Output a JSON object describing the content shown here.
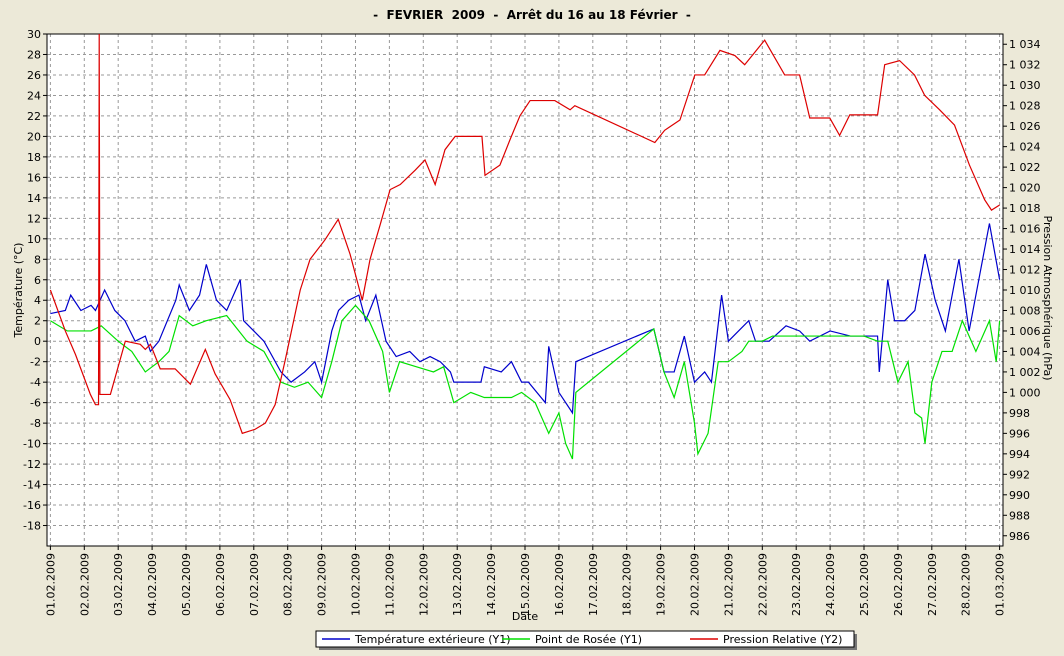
{
  "chart_data": {
    "type": "line",
    "title": "-  FEVRIER  2009  -  Arrêt du 16 au 18 Février  -",
    "x_label": "Date",
    "y_label": "Température (°C)",
    "y2_label": "Pression Atmosphérique (hPa)",
    "grid": true,
    "legend": "bottom",
    "xlim": [
      -0.1,
      28.1
    ],
    "xticks": [
      {
        "value": 0,
        "label": "01.02.2009"
      },
      {
        "value": 1,
        "label": "02.02.2009"
      },
      {
        "value": 2,
        "label": "03.02.2009"
      },
      {
        "value": 3,
        "label": "04.02.2009"
      },
      {
        "value": 4,
        "label": "05.02.2009"
      },
      {
        "value": 5,
        "label": "06.02.2009"
      },
      {
        "value": 6,
        "label": "07.02.2009"
      },
      {
        "value": 7,
        "label": "08.02.2009"
      },
      {
        "value": 8,
        "label": "09.02.2009"
      },
      {
        "value": 9,
        "label": "10.02.2009"
      },
      {
        "value": 10,
        "label": "11.02.2009"
      },
      {
        "value": 11,
        "label": "12.02.2009"
      },
      {
        "value": 12,
        "label": "13.02.2009"
      },
      {
        "value": 13,
        "label": "14.02.2009"
      },
      {
        "value": 14,
        "label": "15.02.2009"
      },
      {
        "value": 15,
        "label": "16.02.2009"
      },
      {
        "value": 16,
        "label": "17.02.2009"
      },
      {
        "value": 17,
        "label": "18.02.2009"
      },
      {
        "value": 18,
        "label": "19.02.2009"
      },
      {
        "value": 19,
        "label": "20.02.2009"
      },
      {
        "value": 20,
        "label": "21.02.2009"
      },
      {
        "value": 21,
        "label": "22.02.2009"
      },
      {
        "value": 22,
        "label": "23.02.2009"
      },
      {
        "value": 23,
        "label": "24.02.2009"
      },
      {
        "value": 24,
        "label": "25.02.2009"
      },
      {
        "value": 25,
        "label": "26.02.2009"
      },
      {
        "value": 26,
        "label": "27.02.2009"
      },
      {
        "value": 27,
        "label": "28.02.2009"
      },
      {
        "value": 28,
        "label": "01.03.2009"
      }
    ],
    "ylim": [
      -20,
      30
    ],
    "yticks": [
      30,
      28,
      26,
      24,
      22,
      20,
      18,
      16,
      14,
      12,
      10,
      8,
      6,
      4,
      2,
      0,
      -2,
      -4,
      -6,
      -8,
      -10,
      -12,
      -14,
      -16,
      -18
    ],
    "y2lim": [
      985,
      1035
    ],
    "y2ticks": [
      {
        "value": 1034,
        "label": "1 034"
      },
      {
        "value": 1032,
        "label": "1 032"
      },
      {
        "value": 1030,
        "label": "1 030"
      },
      {
        "value": 1028,
        "label": "1 028"
      },
      {
        "value": 1026,
        "label": "1 026"
      },
      {
        "value": 1024,
        "label": "1 024"
      },
      {
        "value": 1022,
        "label": "1 022"
      },
      {
        "value": 1020,
        "label": "1 020"
      },
      {
        "value": 1018,
        "label": "1 018"
      },
      {
        "value": 1016,
        "label": "1 016"
      },
      {
        "value": 1014,
        "label": "1 014"
      },
      {
        "value": 1012,
        "label": "1 012"
      },
      {
        "value": 1010,
        "label": "1 010"
      },
      {
        "value": 1008,
        "label": "1 008"
      },
      {
        "value": 1006,
        "label": "1 006"
      },
      {
        "value": 1004,
        "label": "1 004"
      },
      {
        "value": 1002,
        "label": "1 002"
      },
      {
        "value": 1000,
        "label": "1 000"
      },
      998,
      996,
      994,
      992,
      990,
      988,
      986
    ],
    "series": [
      {
        "name": "Température extérieure (Y1)",
        "color": "#0000cc",
        "x": [
          0,
          0.44,
          0.6,
          0.9,
          1.2,
          1.33,
          1.6,
          1.9,
          2.2,
          2.5,
          2.8,
          2.95,
          3.2,
          3.7,
          3.8,
          4.1,
          4.4,
          4.6,
          4.9,
          5.2,
          5.6,
          5.7,
          6.0,
          6.3,
          6.8,
          7.1,
          7.5,
          7.8,
          8.0,
          8.3,
          8.5,
          8.8,
          9.1,
          9.3,
          9.6,
          9.9,
          10.2,
          10.6,
          10.9,
          11.2,
          11.5,
          11.8,
          11.9,
          12.7,
          12.8,
          13.3,
          13.6,
          13.9,
          14.1,
          14.6,
          14.7,
          15.0,
          15.4,
          15.5,
          17.8,
          18.1,
          18.4,
          18.7,
          19.0,
          19.3,
          19.5,
          19.8,
          20.0,
          20.3,
          20.6,
          20.8,
          21.2,
          21.7,
          22.1,
          22.4,
          23.0,
          23.6,
          24.4,
          24.45,
          24.7,
          24.9,
          25.2,
          25.5,
          25.8,
          26.1,
          26.4,
          26.8,
          27.1,
          27.7,
          28
        ],
        "values": [
          2.7,
          3,
          4.5,
          3,
          3.5,
          3,
          5,
          3,
          2,
          0,
          0.5,
          -1,
          0,
          4,
          5.5,
          3,
          4.5,
          7.5,
          4,
          3,
          6,
          2,
          1,
          0,
          -3,
          -4,
          -3,
          -2,
          -4,
          1,
          3,
          4,
          4.5,
          2,
          4.5,
          0,
          -1.5,
          -1,
          -2,
          -1.5,
          -2,
          -3,
          -4,
          -4,
          -2.5,
          -3,
          -2,
          -4,
          -4,
          -6,
          -0.5,
          -5,
          -7,
          -2,
          1.2,
          -3,
          -3,
          0.5,
          -4,
          -3,
          -4,
          4.5,
          0,
          1,
          2,
          0,
          0,
          1.5,
          1,
          0,
          1,
          0.5,
          0.5,
          -3,
          6,
          2,
          2,
          3,
          8.5,
          4,
          1,
          8,
          1,
          11.5,
          6
        ]
      },
      {
        "name": "Point de Rosée (Y1)",
        "color": "#00e000",
        "x": [
          0,
          0.5,
          1.2,
          1.5,
          2,
          2.4,
          2.8,
          3.2,
          3.5,
          3.8,
          4.2,
          4.6,
          5.2,
          5.8,
          6.3,
          6.8,
          7.2,
          7.6,
          8.0,
          8.3,
          8.6,
          9,
          9.4,
          9.8,
          10.0,
          10.3,
          10.8,
          11.3,
          11.6,
          11.9,
          12.4,
          12.8,
          13.6,
          13.9,
          14.3,
          14.7,
          15.0,
          15.2,
          15.4,
          15.5,
          17.8,
          18.1,
          18.4,
          18.7,
          19.0,
          19.1,
          19.4,
          19.7,
          20.0,
          20.4,
          20.6,
          21.0,
          21.3,
          21.7,
          22.2,
          23,
          24,
          24.4,
          24.7,
          25.0,
          25.3,
          25.5,
          25.7,
          25.8,
          26.0,
          26.3,
          26.6,
          26.9,
          27.3,
          27.7,
          27.9,
          28
        ],
        "values": [
          2,
          1,
          1,
          1.5,
          0,
          -1,
          -3,
          -2,
          -1,
          2.5,
          1.5,
          2,
          2.5,
          0,
          -1,
          -4,
          -4.5,
          -4,
          -5.5,
          -2,
          2,
          3.5,
          2,
          -1,
          -5,
          -2,
          -2.5,
          -3,
          -2.5,
          -6,
          -5,
          -5.5,
          -5.5,
          -5,
          -6,
          -9,
          -7,
          -10,
          -11.5,
          -5,
          1.2,
          -3,
          -5.5,
          -2,
          -8,
          -11,
          -9,
          -2,
          -2,
          -1,
          0,
          0,
          0.5,
          0.5,
          0.5,
          0.5,
          0.5,
          0,
          0,
          -4,
          -2,
          -7,
          -7.5,
          -10,
          -4,
          -1,
          -1,
          2,
          -1,
          2,
          -2,
          2
        ]
      },
      {
        "name": "Pression Relative (Y2)",
        "color": "#dd0000",
        "axis": "y2",
        "x": [
          0,
          0.44,
          0.74,
          1.18,
          1.33,
          1.42,
          1.44,
          1.46,
          1.77,
          2.21,
          2.65,
          2.8,
          2.95,
          3.24,
          3.68,
          4.13,
          4.57,
          4.86,
          5.3,
          5.66,
          6.04,
          6.34,
          6.63,
          6.93,
          7.37,
          7.66,
          8.1,
          8.49,
          8.84,
          9.2,
          9.43,
          9.73,
          10.02,
          10.32,
          10.76,
          11.05,
          11.35,
          11.64,
          11.94,
          12.73,
          12.82,
          13.26,
          13.56,
          13.85,
          14.15,
          14.44,
          14.88,
          15.33,
          15.47,
          17.83,
          18.12,
          18.57,
          19.01,
          19.3,
          19.75,
          20.19,
          20.48,
          21.07,
          21.66,
          22.1,
          22.4,
          22.99,
          23.28,
          23.58,
          24.4,
          24.61,
          25.05,
          25.49,
          25.79,
          26.23,
          26.67,
          27.11,
          27.56,
          27.76,
          28
        ],
        "values": [
          1010,
          1006,
          1003.7,
          999.8,
          998.8,
          998.8,
          1035,
          999.8,
          999.8,
          1005,
          1004.7,
          1004.2,
          1004.7,
          1002.3,
          1002.3,
          1000.8,
          1004.2,
          1001.8,
          999.3,
          996,
          996.4,
          997,
          998.8,
          1003.2,
          1010,
          1013,
          1014.9,
          1016.9,
          1013.5,
          1009,
          1013,
          1016.4,
          1019.8,
          1020.3,
          1021.7,
          1022.7,
          1020.3,
          1023.7,
          1025,
          1025,
          1021.2,
          1022.2,
          1024.7,
          1027,
          1028.5,
          1028.5,
          1028.5,
          1027.6,
          1028,
          1024.4,
          1025.6,
          1026.6,
          1031,
          1031,
          1033.4,
          1032.9,
          1032,
          1034.4,
          1031,
          1031,
          1026.8,
          1026.8,
          1025.1,
          1027.1,
          1027.1,
          1032,
          1032.4,
          1031,
          1029,
          1027.6,
          1026.1,
          1022.2,
          1018.8,
          1017.8,
          1018.3
        ]
      }
    ]
  }
}
